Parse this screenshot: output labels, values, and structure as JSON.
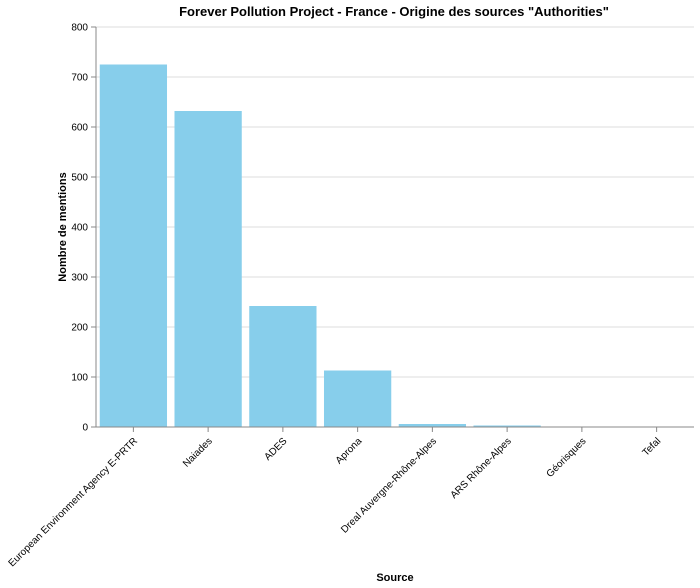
{
  "chart_data": {
    "type": "bar",
    "title": "Forever Pollution Project - France - Origine des sources \"Authorities\"",
    "xlabel": "Source",
    "ylabel": "Nombre de mentions",
    "categories": [
      "European Environment Agency E-PRTR",
      "Naiades",
      "ADES",
      "Aprona",
      "Dreal Auvergne-Rhône-Alpes",
      "ARS Rhône-Alpes",
      "Géorisques",
      "Tefal"
    ],
    "values": [
      725,
      632,
      242,
      113,
      6,
      3,
      1,
      1
    ],
    "ylim": [
      0,
      800
    ],
    "yticks": [
      0,
      100,
      200,
      300,
      400,
      500,
      600,
      700,
      800
    ],
    "grid": true,
    "bar_color": "#87CEEB"
  }
}
